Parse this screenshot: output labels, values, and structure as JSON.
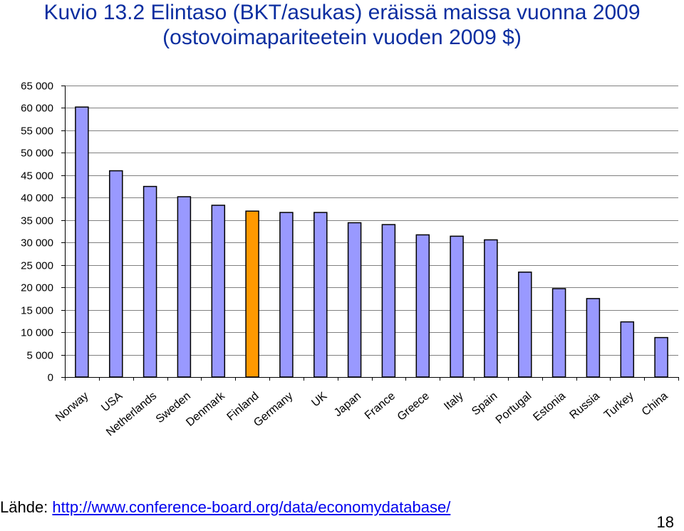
{
  "title": {
    "line1": "Kuvio 13.2 Elintaso (BKT/asukas) eräissä maissa vuonna 2009",
    "line2": "(ostovoimapariteetein vuoden 2009 $)"
  },
  "source": {
    "label": "Lähde: ",
    "link_text": "http://www.conference-board.org/data/economydatabase/"
  },
  "page_number": "18",
  "colors": {
    "bar": "#9999ff",
    "highlight_bar": "#ff9900",
    "bar_outline": "#000000",
    "gridline": "#808080",
    "title": "#0b2ea0"
  },
  "chart_data": {
    "type": "bar",
    "categories": [
      "Norway",
      "USA",
      "Netherlands",
      "Sweden",
      "Denmark",
      "Finland",
      "Germany",
      "UK",
      "Japan",
      "France",
      "Greece",
      "Italy",
      "Spain",
      "Portugal",
      "Estonia",
      "Russia",
      "Turkey",
      "China"
    ],
    "values": [
      60200,
      46000,
      42500,
      40200,
      38300,
      37000,
      36700,
      36700,
      34400,
      34000,
      31700,
      31400,
      30600,
      23400,
      19700,
      17500,
      12300,
      8800
    ],
    "highlight": "Finland",
    "ylim": [
      0,
      65000
    ],
    "yticks": [
      0,
      5000,
      10000,
      15000,
      20000,
      25000,
      30000,
      35000,
      40000,
      45000,
      50000,
      55000,
      60000,
      65000
    ],
    "ytick_labels": [
      "0",
      "5 000",
      "10 000",
      "15 000",
      "20 000",
      "25 000",
      "30 000",
      "35 000",
      "40 000",
      "45 000",
      "50 000",
      "55 000",
      "60 000",
      "65 000"
    ],
    "grid": true,
    "xlabel": "",
    "ylabel": ""
  }
}
